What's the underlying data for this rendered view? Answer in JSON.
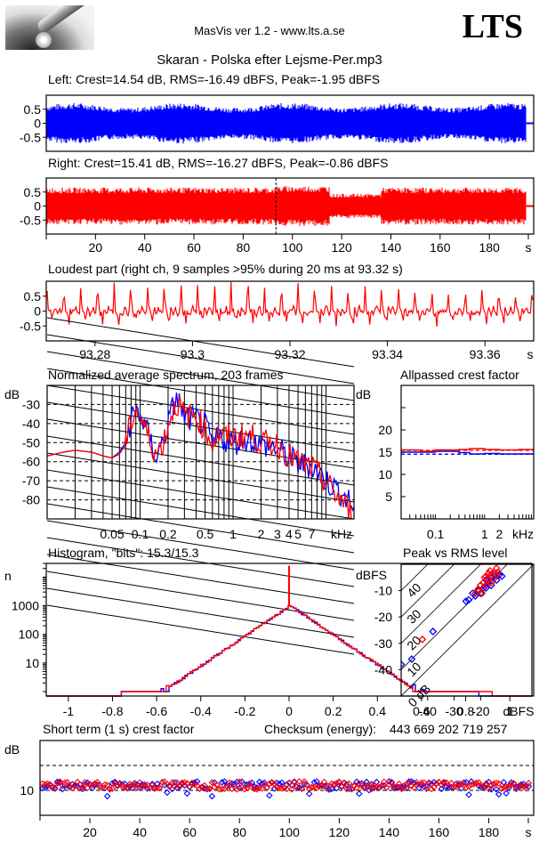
{
  "header": {
    "app_title": "MasVis ver 1.2 - www.lts.a.se",
    "brand": "LTS",
    "file_title": "Skaran - Polska efter Lejsme-Per.mp3",
    "logo_icon": "microphone-rod-photo"
  },
  "colors": {
    "left": "#0000ff",
    "right": "#ff0000",
    "axis": "#000000"
  },
  "chart_data": [
    {
      "id": "left_waveform",
      "type": "area",
      "title": "Left: Crest=14.54 dB, RMS=-16.49 dBFS, Peak=-1.95 dBFS",
      "ylim": [
        -1,
        1
      ],
      "yticks": [
        "0.5",
        "0",
        "-0.5"
      ],
      "ytick_values": [
        0.5,
        0,
        -0.5
      ],
      "xlim": [
        0,
        198
      ],
      "duration_s": 195,
      "envelope_peak_approx": 0.75,
      "series": [
        {
          "name": "Left",
          "color": "#0000ff"
        }
      ]
    },
    {
      "id": "right_waveform",
      "type": "area",
      "title": "Right: Crest=15.41 dB, RMS=-16.27 dBFS, Peak=-0.86 dBFS",
      "ylim": [
        -1,
        1
      ],
      "yticks": [
        "0.5",
        "0",
        "-0.5"
      ],
      "ytick_values": [
        0.5,
        0,
        -0.5
      ],
      "xlim": [
        0,
        198
      ],
      "xticks": [
        "20",
        "40",
        "60",
        "80",
        "100",
        "120",
        "140",
        "160",
        "180"
      ],
      "xtick_values": [
        20,
        40,
        60,
        80,
        100,
        120,
        140,
        160,
        180
      ],
      "xunit": "s",
      "marker_s": 93.32,
      "segments": [
        {
          "from": 0,
          "to": 93,
          "amp": 0.6
        },
        {
          "from": 93,
          "to": 115,
          "amp": 0.65
        },
        {
          "from": 115,
          "to": 136,
          "amp": 0.4
        },
        {
          "from": 136,
          "to": 195,
          "amp": 0.6
        }
      ],
      "series": [
        {
          "name": "Right",
          "color": "#ff0000"
        }
      ]
    },
    {
      "id": "loudest_part",
      "type": "line",
      "title": "Loudest part (right ch, 9 samples >95% during 20 ms at 93.32 s)",
      "ylim": [
        -1,
        1
      ],
      "yticks": [
        "0.5",
        "0",
        "-0.5"
      ],
      "ytick_values": [
        0.5,
        0,
        -0.5
      ],
      "xlim": [
        93.27,
        93.37
      ],
      "xticks": [
        "93.28",
        "93.3",
        "93.32",
        "93.34",
        "93.36"
      ],
      "xtick_values": [
        93.28,
        93.3,
        93.32,
        93.34,
        93.36
      ],
      "xunit": "s",
      "period_s": 0.00343,
      "peak_values": [
        0.65,
        0.7,
        0.75,
        0.7,
        0.8,
        0.75,
        0.7,
        0.75,
        0.8,
        0.85,
        0.8,
        0.85,
        0.9,
        0.8,
        0.85,
        0.75,
        0.8,
        0.7,
        0.75,
        0.7,
        0.65,
        0.7,
        0.6,
        0.55,
        0.6,
        0.5,
        0.55,
        0.5,
        0.5
      ],
      "series": [
        {
          "name": "Right",
          "color": "#ff0000"
        }
      ]
    },
    {
      "id": "spectrum",
      "type": "line",
      "title": "Normalized average spectrum, 203 frames",
      "ylabel": "dB",
      "ylim": [
        -90,
        -20
      ],
      "yticks": [
        "-30",
        "-40",
        "-50",
        "-60",
        "-70",
        "-80"
      ],
      "ytick_values": [
        -30,
        -40,
        -50,
        -60,
        -70,
        -80
      ],
      "xscale": "log",
      "xlim_khz": [
        0.01,
        20
      ],
      "xticks": [
        "0.05",
        "0.1",
        "0.2",
        "0.5",
        "1",
        "2",
        "3",
        "4",
        "5",
        "7",
        "kHz"
      ],
      "xtick_values": [
        0.05,
        0.1,
        0.2,
        0.5,
        1,
        2,
        3,
        4,
        5,
        7
      ],
      "grid": true,
      "x": [
        0.01,
        0.015,
        0.02,
        0.03,
        0.04,
        0.05,
        0.06,
        0.07,
        0.08,
        0.09,
        0.1,
        0.12,
        0.15,
        0.18,
        0.2,
        0.22,
        0.25,
        0.3,
        0.4,
        0.5,
        0.6,
        0.7,
        0.8,
        1,
        1.5,
        2,
        3,
        4,
        5,
        7,
        10,
        15,
        20
      ],
      "series": [
        {
          "name": "Left",
          "color": "#0000ff",
          "values": [
            -57,
            -55,
            -54,
            -55,
            -57,
            -58,
            -55,
            -50,
            -38,
            -33,
            -35,
            -45,
            -58,
            -48,
            -40,
            -33,
            -26,
            -37,
            -38,
            -41,
            -52,
            -47,
            -48,
            -50,
            -48,
            -51,
            -53,
            -58,
            -61,
            -62,
            -70,
            -77,
            -84
          ]
        },
        {
          "name": "Right",
          "color": "#ff0000",
          "values": [
            -57,
            -55,
            -54,
            -55,
            -57,
            -58,
            -56,
            -51,
            -39,
            -32,
            -36,
            -46,
            -56,
            -49,
            -41,
            -34,
            -29,
            -36,
            -36,
            -43,
            -50,
            -45,
            -47,
            -47,
            -46,
            -50,
            -51,
            -57,
            -60,
            -63,
            -71,
            -81,
            -88
          ]
        }
      ]
    },
    {
      "id": "allpassed_crest",
      "type": "line",
      "title": "Allpassed crest factor",
      "ylabel": "dB",
      "ylim": [
        0,
        30
      ],
      "yticks": [
        "20",
        "15",
        "10",
        "5"
      ],
      "ytick_values": [
        20,
        15,
        10,
        5
      ],
      "xscale": "log",
      "xlim_khz": [
        0.02,
        10
      ],
      "xticks": [
        "0.1",
        "1",
        "2",
        "kHz"
      ],
      "xtick_values": [
        0.1,
        1,
        2
      ],
      "x": [
        0.02,
        0.05,
        0.1,
        0.3,
        0.5,
        1,
        2,
        5,
        10
      ],
      "series": [
        {
          "name": "Left",
          "color": "#0000ff",
          "values": [
            15.0,
            15.0,
            15.2,
            14.9,
            14.6,
            14.7,
            14.6,
            14.6,
            14.6
          ],
          "reference": 14.54
        },
        {
          "name": "Right",
          "color": "#ff0000",
          "values": [
            15.5,
            15.2,
            15.5,
            15.6,
            15.8,
            15.6,
            15.5,
            15.6,
            15.6
          ],
          "reference": 15.41
        }
      ]
    },
    {
      "id": "histogram",
      "type": "line",
      "title": "Histogram, \"bits\": 15.3/15.3",
      "ylabel": "n",
      "yscale": "log",
      "ylim": [
        0.7,
        30000
      ],
      "yticks": [
        "1000",
        "100",
        "10"
      ],
      "ytick_values": [
        1000,
        100,
        10
      ],
      "xlim": [
        -1.1,
        1.1
      ],
      "xticks": [
        "-1",
        "-0.8",
        "-0.6",
        "-0.4",
        "-0.2",
        "0",
        "0.2",
        "0.4",
        "0.6",
        "0.8",
        "1"
      ],
      "xtick_values": [
        -1,
        -0.8,
        -0.6,
        -0.4,
        -0.2,
        0,
        0.2,
        0.4,
        0.6,
        0.8,
        1
      ],
      "center_spike": 25000,
      "center_value": 1000,
      "decay_per_unit": 5.2,
      "left_extent": [
        -0.76,
        0.86
      ],
      "right_extent": [
        -0.76,
        0.92
      ],
      "series": [
        {
          "name": "Left",
          "color": "#0000ff"
        },
        {
          "name": "Right",
          "color": "#ff0000"
        }
      ]
    },
    {
      "id": "peak_vs_rms",
      "type": "scatter",
      "title": "Peak vs RMS level",
      "ylabel": "dBFS",
      "xlabel": "dBFS",
      "xlim": [
        -50,
        0
      ],
      "ylim": [
        -50,
        0
      ],
      "xticks": [
        "-40",
        "-30",
        "-20"
      ],
      "xtick_values": [
        -40,
        -30,
        -20
      ],
      "yticks": [
        "-10",
        "-20",
        "-30",
        "-40"
      ],
      "ytick_values": [
        -10,
        -20,
        -30,
        -40
      ],
      "crest_lines": [
        "0 dB",
        "10",
        "20",
        "30",
        "40"
      ],
      "crest_line_values": [
        0,
        10,
        20,
        30,
        40
      ],
      "series": [
        {
          "name": "Left",
          "color": "#0000ff",
          "points": [
            [
              -50,
              -38
            ],
            [
              -46,
              -36
            ],
            [
              -38,
              -25.5
            ],
            [
              -25.5,
              -14
            ],
            [
              -24.5,
              -13.5
            ],
            [
              -23,
              -11
            ],
            [
              -22,
              -12
            ],
            [
              -21,
              -10
            ],
            [
              -20,
              -8
            ],
            [
              -19,
              -9
            ],
            [
              -18,
              -6
            ],
            [
              -17,
              -7
            ],
            [
              -16,
              -5
            ],
            [
              -15,
              -4
            ],
            [
              -14,
              -6
            ],
            [
              -13,
              -4
            ],
            [
              -12,
              -4.5
            ],
            [
              -16,
              -8
            ],
            [
              -18,
              -9
            ],
            [
              -20,
              -11
            ]
          ]
        },
        {
          "name": "Right",
          "color": "#ff0000",
          "points": [
            [
              -42,
              -28.5
            ],
            [
              -22,
              -11
            ],
            [
              -21,
              -9.5
            ],
            [
              -20,
              -8
            ],
            [
              -19,
              -7
            ],
            [
              -18.5,
              -5
            ],
            [
              -18,
              -8
            ],
            [
              -17,
              -6
            ],
            [
              -17,
              -3.5
            ],
            [
              -16,
              -4
            ],
            [
              -16,
              -7
            ],
            [
              -15,
              -3
            ],
            [
              -15,
              -5.5
            ],
            [
              -14,
              -1.5
            ],
            [
              -14,
              -4
            ],
            [
              -13.5,
              -3
            ],
            [
              -20.5,
              -10
            ],
            [
              -19.5,
              -11
            ],
            [
              -18,
              -4.5
            ],
            [
              -16.5,
              -2.5
            ]
          ]
        }
      ]
    },
    {
      "id": "short_term_crest",
      "type": "scatter",
      "title": "Short term (1 s) crest factor",
      "ylabel": "dB",
      "ylim": [
        5,
        20
      ],
      "yticks": [
        "10"
      ],
      "ytick_values": [
        10
      ],
      "dashed_lines": [
        10,
        15
      ],
      "xlim": [
        0,
        198
      ],
      "xticks": [
        "20",
        "40",
        "60",
        "80",
        "100",
        "120",
        "140",
        "160",
        "180"
      ],
      "xtick_values": [
        20,
        40,
        60,
        80,
        100,
        120,
        140,
        160,
        180
      ],
      "xunit": "s",
      "seconds": 196,
      "mean_db": 11.0,
      "spread_db": 0.8,
      "series": [
        {
          "name": "Left",
          "color": "#0000ff"
        },
        {
          "name": "Right",
          "color": "#ff0000"
        }
      ]
    }
  ],
  "checksum": {
    "label": "Checksum (energy):",
    "value": "443 669 202 719 257"
  }
}
